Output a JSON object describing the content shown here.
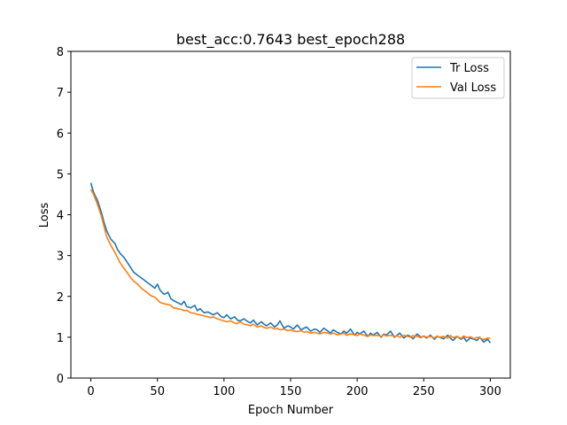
{
  "chart_data": {
    "type": "line",
    "title": "best_acc:0.7643 best_epoch288",
    "xlabel": "Epoch Number",
    "ylabel": "Loss",
    "xlim": [
      -15,
      315
    ],
    "ylim": [
      0,
      8
    ],
    "xticks": [
      0,
      50,
      100,
      150,
      200,
      250,
      300
    ],
    "yticks": [
      0,
      1,
      2,
      3,
      4,
      5,
      6,
      7,
      8
    ],
    "legend": "top-right",
    "grid": false,
    "series": [
      {
        "name": "Tr Loss",
        "color": "#1f77b4",
        "x": [
          0,
          2,
          5,
          8,
          10,
          12,
          15,
          18,
          20,
          22,
          25,
          28,
          30,
          32,
          35,
          38,
          40,
          42,
          45,
          48,
          50,
          52,
          55,
          58,
          60,
          62,
          65,
          68,
          70,
          72,
          75,
          78,
          80,
          82,
          85,
          88,
          90,
          92,
          95,
          98,
          100,
          102,
          105,
          108,
          110,
          112,
          115,
          118,
          120,
          122,
          125,
          128,
          130,
          132,
          135,
          138,
          140,
          142,
          145,
          148,
          150,
          152,
          155,
          158,
          160,
          162,
          165,
          168,
          170,
          172,
          175,
          178,
          180,
          182,
          185,
          188,
          190,
          192,
          195,
          198,
          200,
          202,
          205,
          208,
          210,
          212,
          215,
          218,
          220,
          222,
          225,
          228,
          230,
          232,
          235,
          238,
          240,
          242,
          245,
          248,
          250,
          252,
          255,
          258,
          260,
          262,
          265,
          268,
          270,
          272,
          275,
          278,
          280,
          282,
          285,
          288,
          290,
          292,
          295,
          298,
          300
        ],
        "values": [
          4.78,
          4.55,
          4.35,
          4.05,
          3.8,
          3.6,
          3.4,
          3.3,
          3.15,
          3.05,
          2.95,
          2.8,
          2.7,
          2.6,
          2.52,
          2.45,
          2.4,
          2.35,
          2.28,
          2.2,
          2.3,
          2.15,
          2.05,
          2.1,
          1.95,
          1.9,
          1.85,
          1.8,
          1.88,
          1.75,
          1.72,
          1.78,
          1.65,
          1.7,
          1.6,
          1.62,
          1.58,
          1.55,
          1.6,
          1.5,
          1.48,
          1.55,
          1.45,
          1.5,
          1.42,
          1.4,
          1.45,
          1.38,
          1.35,
          1.42,
          1.3,
          1.38,
          1.32,
          1.28,
          1.35,
          1.25,
          1.3,
          1.4,
          1.22,
          1.28,
          1.25,
          1.2,
          1.3,
          1.18,
          1.22,
          1.25,
          1.15,
          1.2,
          1.18,
          1.12,
          1.22,
          1.15,
          1.1,
          1.18,
          1.12,
          1.08,
          1.15,
          1.1,
          1.2,
          1.05,
          1.12,
          1.08,
          1.15,
          1.02,
          1.1,
          1.05,
          1.12,
          1.0,
          1.08,
          1.05,
          1.15,
          1.0,
          1.05,
          1.1,
          0.98,
          1.05,
          1.02,
          0.96,
          1.08,
          1.0,
          1.03,
          0.98,
          1.05,
          0.95,
          1.02,
          1.0,
          0.96,
          1.05,
          0.98,
          0.92,
          1.02,
          0.95,
          1.0,
          0.9,
          0.98,
          0.95,
          0.92,
          1.0,
          0.88,
          0.95,
          0.86
        ]
      },
      {
        "name": "Val Loss",
        "color": "#ff7f0e",
        "x": [
          0,
          2,
          5,
          8,
          10,
          12,
          15,
          18,
          20,
          22,
          25,
          28,
          30,
          32,
          35,
          38,
          40,
          42,
          45,
          48,
          50,
          52,
          55,
          58,
          60,
          62,
          65,
          68,
          70,
          72,
          75,
          78,
          80,
          82,
          85,
          88,
          90,
          92,
          95,
          98,
          100,
          102,
          105,
          108,
          110,
          112,
          115,
          118,
          120,
          122,
          125,
          128,
          130,
          132,
          135,
          138,
          140,
          142,
          145,
          148,
          150,
          152,
          155,
          158,
          160,
          162,
          165,
          168,
          170,
          172,
          175,
          178,
          180,
          182,
          185,
          188,
          190,
          192,
          195,
          198,
          200,
          202,
          205,
          208,
          210,
          212,
          215,
          218,
          220,
          222,
          225,
          228,
          230,
          232,
          235,
          238,
          240,
          242,
          245,
          248,
          250,
          252,
          255,
          258,
          260,
          262,
          265,
          268,
          270,
          272,
          275,
          278,
          280,
          282,
          285,
          288,
          290,
          292,
          295,
          298,
          300
        ],
        "values": [
          4.62,
          4.5,
          4.25,
          3.95,
          3.7,
          3.45,
          3.25,
          3.08,
          2.95,
          2.82,
          2.68,
          2.55,
          2.45,
          2.38,
          2.3,
          2.2,
          2.15,
          2.1,
          2.02,
          1.98,
          1.92,
          1.85,
          1.82,
          1.8,
          1.78,
          1.72,
          1.7,
          1.68,
          1.65,
          1.66,
          1.6,
          1.58,
          1.56,
          1.55,
          1.52,
          1.5,
          1.48,
          1.5,
          1.45,
          1.42,
          1.4,
          1.38,
          1.4,
          1.35,
          1.33,
          1.38,
          1.32,
          1.3,
          1.28,
          1.32,
          1.25,
          1.28,
          1.24,
          1.22,
          1.25,
          1.2,
          1.22,
          1.18,
          1.2,
          1.16,
          1.18,
          1.15,
          1.14,
          1.16,
          1.12,
          1.14,
          1.1,
          1.12,
          1.1,
          1.08,
          1.12,
          1.1,
          1.08,
          1.1,
          1.06,
          1.08,
          1.1,
          1.05,
          1.08,
          1.06,
          1.04,
          1.08,
          1.05,
          1.02,
          1.06,
          1.04,
          1.05,
          1.02,
          1.06,
          1.03,
          1.05,
          1.02,
          1.04,
          1.0,
          1.05,
          1.02,
          1.0,
          1.04,
          1.02,
          0.99,
          1.03,
          1.0,
          1.02,
          0.98,
          1.03,
          1.0,
          1.02,
          0.98,
          1.04,
          0.99,
          1.02,
          0.97,
          1.03,
          0.99,
          1.01,
          0.96,
          1.0,
          0.98,
          0.94,
          0.98,
          0.97
        ]
      }
    ]
  }
}
